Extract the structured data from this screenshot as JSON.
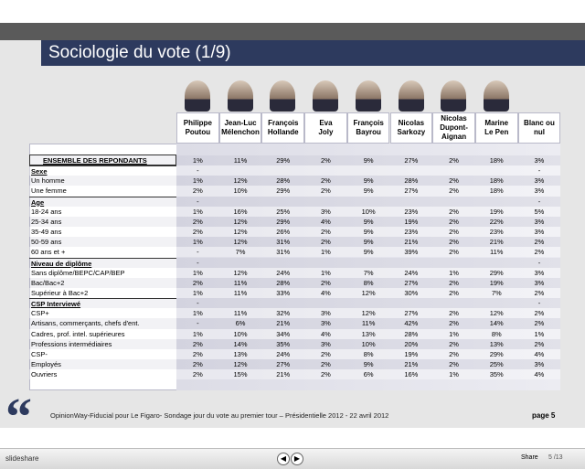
{
  "header": {
    "title": "Sociologie du vote (1/9)"
  },
  "table": {
    "columns": [
      [
        "Philippe",
        "Poutou"
      ],
      [
        "Jean-Luc",
        "Mélenchon"
      ],
      [
        "François",
        "Hollande"
      ],
      [
        "Eva",
        "Joly"
      ],
      [
        "François",
        "Bayrou"
      ],
      [
        "Nicolas",
        "Sarkozy"
      ],
      [
        "Nicolas",
        "Dupont-",
        "Aignan"
      ],
      [
        "Marine",
        "Le Pen"
      ],
      [
        "Blanc ou",
        "nul"
      ]
    ],
    "rows": [
      {
        "label": "ENSEMBLE DES REPONDANTS",
        "kind": "total",
        "values": [
          "1%",
          "11%",
          "29%",
          "2%",
          "9%",
          "27%",
          "2%",
          "18%",
          "3%"
        ]
      },
      {
        "label": "Sexe",
        "kind": "section",
        "values": [
          "-",
          null,
          null,
          null,
          null,
          null,
          null,
          null,
          "-"
        ]
      },
      {
        "label": "Un homme",
        "values": [
          "1%",
          "12%",
          "28%",
          "2%",
          "9%",
          "28%",
          "2%",
          "18%",
          "3%"
        ]
      },
      {
        "label": "Une femme",
        "values": [
          "2%",
          "10%",
          "29%",
          "2%",
          "9%",
          "27%",
          "2%",
          "18%",
          "3%"
        ]
      },
      {
        "label": "Age",
        "kind": "section",
        "values": [
          "-",
          null,
          null,
          null,
          null,
          null,
          null,
          null,
          "-"
        ]
      },
      {
        "label": "18-24 ans",
        "values": [
          "1%",
          "16%",
          "25%",
          "3%",
          "10%",
          "23%",
          "2%",
          "19%",
          "5%"
        ]
      },
      {
        "label": "25-34 ans",
        "values": [
          "2%",
          "12%",
          "29%",
          "4%",
          "9%",
          "19%",
          "2%",
          "22%",
          "3%"
        ]
      },
      {
        "label": "35-49 ans",
        "values": [
          "2%",
          "12%",
          "26%",
          "2%",
          "9%",
          "23%",
          "2%",
          "23%",
          "3%"
        ]
      },
      {
        "label": "50-59 ans",
        "values": [
          "1%",
          "12%",
          "31%",
          "2%",
          "9%",
          "21%",
          "2%",
          "21%",
          "2%"
        ]
      },
      {
        "label": "60 ans et +",
        "values": [
          "-",
          "7%",
          "31%",
          "1%",
          "9%",
          "39%",
          "2%",
          "11%",
          "2%"
        ]
      },
      {
        "label": "Niveau de diplôme",
        "kind": "section",
        "values": [
          "-",
          null,
          null,
          null,
          null,
          null,
          null,
          null,
          "-"
        ]
      },
      {
        "label": "Sans diplôme/BEPC/CAP/BEP",
        "values": [
          "1%",
          "12%",
          "24%",
          "1%",
          "7%",
          "24%",
          "1%",
          "29%",
          "3%"
        ]
      },
      {
        "label": "Bac/Bac+2",
        "values": [
          "2%",
          "11%",
          "28%",
          "2%",
          "8%",
          "27%",
          "2%",
          "19%",
          "3%"
        ]
      },
      {
        "label": "Supérieur à Bac+2",
        "values": [
          "1%",
          "11%",
          "33%",
          "4%",
          "12%",
          "30%",
          "2%",
          "7%",
          "2%"
        ]
      },
      {
        "label": "CSP Interviewé",
        "kind": "section",
        "values": [
          "-",
          null,
          null,
          null,
          null,
          null,
          null,
          null,
          "-"
        ]
      },
      {
        "label": "CSP+",
        "values": [
          "1%",
          "11%",
          "32%",
          "3%",
          "12%",
          "27%",
          "2%",
          "12%",
          "2%"
        ]
      },
      {
        "label": "Artisans, commerçants, chefs d'ent.",
        "values": [
          "-",
          "6%",
          "21%",
          "3%",
          "11%",
          "42%",
          "2%",
          "14%",
          "2%"
        ]
      },
      {
        "label": "Cadres, prof. intel. supérieures",
        "values": [
          "1%",
          "10%",
          "34%",
          "4%",
          "13%",
          "28%",
          "1%",
          "8%",
          "1%"
        ]
      },
      {
        "label": "Professions intermédiaires",
        "values": [
          "2%",
          "14%",
          "35%",
          "3%",
          "10%",
          "20%",
          "2%",
          "13%",
          "2%"
        ]
      },
      {
        "label": "CSP-",
        "values": [
          "2%",
          "13%",
          "24%",
          "2%",
          "8%",
          "19%",
          "2%",
          "29%",
          "4%"
        ]
      },
      {
        "label": "Employés",
        "values": [
          "2%",
          "12%",
          "27%",
          "2%",
          "9%",
          "21%",
          "2%",
          "25%",
          "3%"
        ]
      },
      {
        "label": "Ouvriers",
        "values": [
          "2%",
          "15%",
          "21%",
          "2%",
          "6%",
          "16%",
          "1%",
          "35%",
          "4%"
        ]
      }
    ]
  },
  "footer": {
    "source": "OpinionWay-Fiducial pour Le Figaro- Sondage jour du vote au premier tour – Présidentielle 2012 - 22 avril 2012",
    "page": "page 5"
  },
  "toolbar": {
    "logo": "slideshare",
    "share": "Share",
    "pager": "5 /13"
  }
}
